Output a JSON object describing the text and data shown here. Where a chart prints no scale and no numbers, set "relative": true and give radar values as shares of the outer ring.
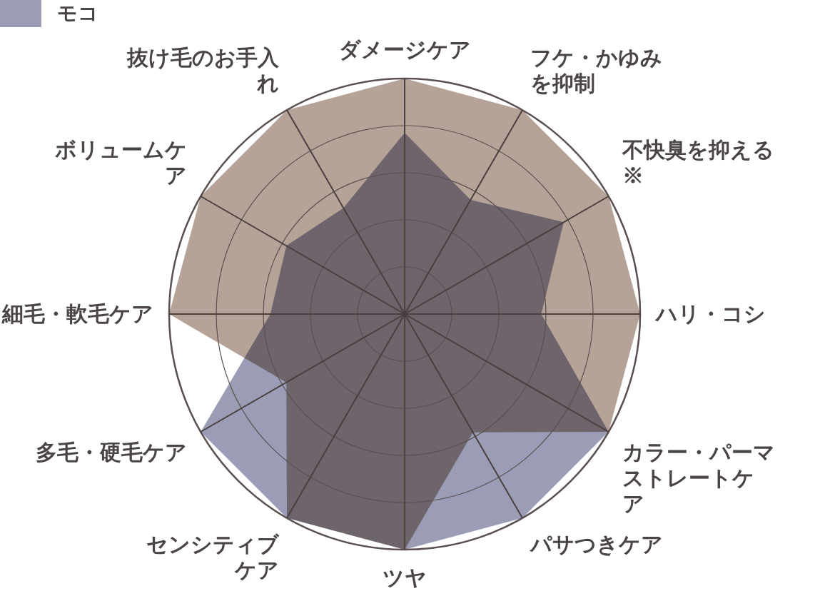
{
  "chart_data": {
    "type": "radar",
    "relative": true,
    "grid": true,
    "legend": "top left",
    "categories": [
      "ダメージケア",
      "フケ・かゆみを抑制",
      "不快臭を抑える※",
      "ハリ・コシ",
      "カラー・パーマストレートケア",
      "パサつきケア",
      "ツヤ",
      "センシティブケア",
      "多毛・硬毛ケア",
      "細毛・軟毛ケア",
      "ボリュームケア",
      "抜け毛のお手入れ"
    ],
    "series": [
      {
        "color": "#b5a398",
        "values": [
          1,
          1,
          1,
          1,
          1,
          0.58,
          1,
          1,
          0.58,
          1,
          1,
          1
        ]
      },
      {
        "name": "モコ",
        "color": "#9a9db5",
        "values": [
          0.77,
          0.56,
          0.78,
          0.58,
          1,
          1,
          1,
          1,
          1,
          0.57,
          0.58,
          0.52
        ]
      }
    ]
  }
}
